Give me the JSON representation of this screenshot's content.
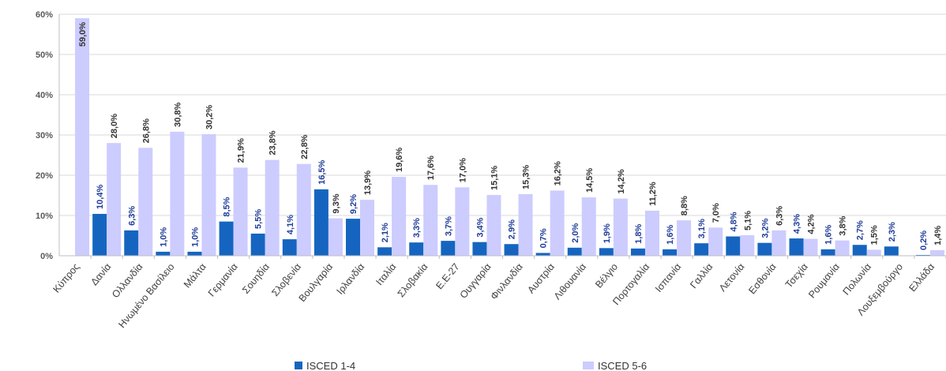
{
  "chart_data": {
    "type": "bar",
    "ylim": [
      0,
      60
    ],
    "yticks": [
      "0%",
      "10%",
      "20%",
      "30%",
      "40%",
      "50%",
      "60%"
    ],
    "grid": true,
    "legend_position": "bottom",
    "categories": [
      "Κύπρος",
      "Δανία",
      "Ολλανδία",
      "Ηνωμένο Βασίλειο",
      "Μάλτα",
      "Γερμανία",
      "Σουηδία",
      "Σλοβενία",
      "Βουλγαρία",
      "Ιρλανδία",
      "Ιταλία",
      "Σλοβακία",
      "Ε.Ε-27",
      "Ουγγαρία",
      "Φινλανδία",
      "Αυστρία",
      "Λιθουανία",
      "Βέλγιο",
      "Πορτογαλία",
      "Ισπανία",
      "Γαλλία",
      "Λετονία",
      "Εσθονία",
      "Τσεχία",
      "Ρουμανία",
      "Πολωνία",
      "Λουξεμβούργο",
      "Ελλάδα"
    ],
    "series": [
      {
        "name": "ISCED 1-4",
        "color": "#1565c0",
        "values": [
          null,
          10.4,
          6.3,
          1.0,
          1.0,
          8.5,
          5.5,
          4.1,
          16.5,
          9.2,
          2.1,
          3.3,
          3.7,
          3.4,
          2.9,
          0.7,
          2.0,
          1.9,
          1.8,
          1.6,
          3.1,
          4.8,
          3.2,
          4.3,
          1.6,
          2.7,
          2.3,
          0.2
        ],
        "labels": [
          "",
          "10,4%",
          "6,3%",
          "1,0%",
          "1,0%",
          "8,5%",
          "5,5%",
          "4,1%",
          "16,5%",
          "9,2%",
          "2,1%",
          "3,3%",
          "3,7%",
          "3,4%",
          "2,9%",
          "0,7%",
          "2,0%",
          "1,9%",
          "1,8%",
          "1,6%",
          "3,1%",
          "4,8%",
          "3,2%",
          "4,3%",
          "1,6%",
          "2,7%",
          "2,3%",
          "0,2%"
        ]
      },
      {
        "name": "ISCED 5-6",
        "color": "#ccccff",
        "values": [
          59.0,
          28.0,
          26.8,
          30.8,
          30.2,
          21.9,
          23.8,
          22.8,
          9.3,
          13.9,
          19.6,
          17.6,
          17.0,
          15.1,
          15.3,
          16.2,
          14.5,
          14.2,
          11.2,
          8.8,
          7.0,
          5.1,
          6.3,
          4.2,
          3.8,
          1.5,
          null,
          1.4
        ],
        "labels": [
          "59,0%",
          "28,0%",
          "26,8%",
          "30,8%",
          "30,2%",
          "21,9%",
          "23,8%",
          "22,8%",
          "9,3%",
          "13,9%",
          "19,6%",
          "17,6%",
          "17,0%",
          "15,1%",
          "15,3%",
          "16,2%",
          "14,5%",
          "14,2%",
          "11,2%",
          "8,8%",
          "7,0%",
          "5,1%",
          "6,3%",
          "4,2%",
          "3,8%",
          "1,5%",
          "",
          "1,4%"
        ]
      }
    ]
  },
  "legend": {
    "series1_label": "ISCED 1-4",
    "series2_label": "ISCED 5-6"
  }
}
